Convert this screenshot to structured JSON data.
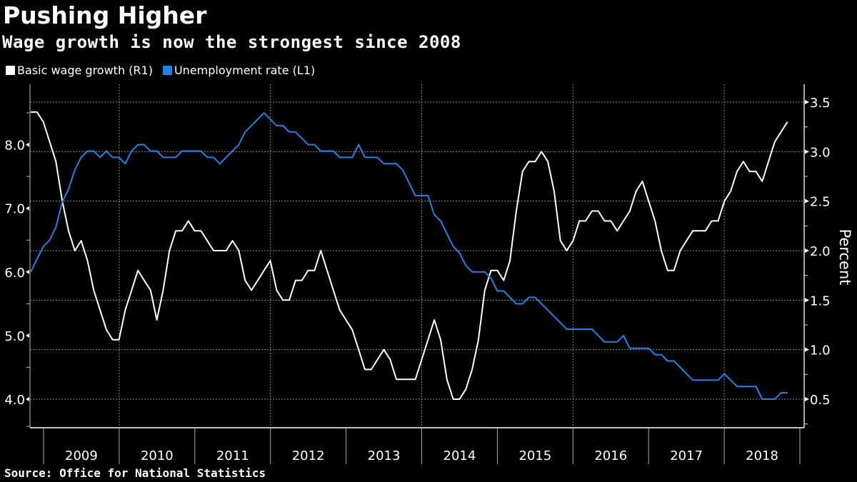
{
  "header": {
    "title": "Pushing Higher",
    "subtitle": "Wage growth is now the strongest since 2008"
  },
  "legend": [
    {
      "label": "Basic wage growth (R1)",
      "color": "#ffffff"
    },
    {
      "label": "Unemployment rate (L1)",
      "color": "#2283e2"
    }
  ],
  "footer": {
    "source": "Source: Office for National Statistics"
  },
  "chart_data": {
    "type": "line",
    "title": "Pushing Higher",
    "subtitle": "Wage growth is now the strongest since 2008",
    "x_frequency": "monthly",
    "x_start": "2008-11",
    "x_end": "2018-11",
    "x_tick_labels": [
      "2009",
      "2010",
      "2011",
      "2012",
      "2013",
      "2014",
      "2015",
      "2016",
      "2017",
      "2018"
    ],
    "xlabel": "",
    "left_axis": {
      "label": "",
      "ticks": [
        "4.0",
        "5.0",
        "6.0",
        "7.0",
        "8.0"
      ],
      "ylim": [
        3.55,
        8.95
      ]
    },
    "right_axis": {
      "label": "Percent",
      "ticks": [
        "0.5",
        "1.0",
        "1.5",
        "2.0",
        "2.5",
        "3.0",
        "3.5"
      ],
      "ylim": [
        0.22,
        3.68
      ]
    },
    "grid": true,
    "legend_position": "top-left",
    "series": [
      {
        "name": "Basic wage growth (R1)",
        "axis": "right",
        "color": "#ffffff",
        "values": [
          3.4,
          3.4,
          3.3,
          3.1,
          2.9,
          2.5,
          2.2,
          2.0,
          2.1,
          1.9,
          1.6,
          1.4,
          1.2,
          1.1,
          1.1,
          1.4,
          1.6,
          1.8,
          1.7,
          1.6,
          1.3,
          1.6,
          2.0,
          2.2,
          2.2,
          2.3,
          2.2,
          2.2,
          2.1,
          2.0,
          2.0,
          2.0,
          2.1,
          2.0,
          1.7,
          1.6,
          1.7,
          1.8,
          1.9,
          1.6,
          1.5,
          1.5,
          1.7,
          1.7,
          1.8,
          1.8,
          2.0,
          1.8,
          1.6,
          1.4,
          1.3,
          1.2,
          1.0,
          0.8,
          0.8,
          0.9,
          1.0,
          0.9,
          0.7,
          0.7,
          0.7,
          0.7,
          0.9,
          1.1,
          1.3,
          1.1,
          0.7,
          0.5,
          0.5,
          0.6,
          0.8,
          1.1,
          1.6,
          1.8,
          1.8,
          1.7,
          1.9,
          2.4,
          2.8,
          2.9,
          2.9,
          3.0,
          2.9,
          2.6,
          2.1,
          2.0,
          2.1,
          2.3,
          2.3,
          2.4,
          2.4,
          2.3,
          2.3,
          2.2,
          2.3,
          2.4,
          2.6,
          2.7,
          2.5,
          2.3,
          2.0,
          1.8,
          1.8,
          2.0,
          2.1,
          2.2,
          2.2,
          2.2,
          2.3,
          2.3,
          2.5,
          2.6,
          2.8,
          2.9,
          2.8,
          2.8,
          2.7,
          2.9,
          3.1,
          3.2,
          3.3
        ]
      },
      {
        "name": "Unemployment rate (L1)",
        "axis": "left",
        "color": "#2283e2",
        "values": [
          6.0,
          6.2,
          6.4,
          6.5,
          6.7,
          7.1,
          7.3,
          7.6,
          7.8,
          7.9,
          7.9,
          7.8,
          7.9,
          7.8,
          7.8,
          7.7,
          7.9,
          8.0,
          8.0,
          7.9,
          7.9,
          7.8,
          7.8,
          7.8,
          7.9,
          7.9,
          7.9,
          7.9,
          7.8,
          7.8,
          7.7,
          7.8,
          7.9,
          8.0,
          8.2,
          8.3,
          8.4,
          8.5,
          8.4,
          8.3,
          8.3,
          8.2,
          8.2,
          8.1,
          8.0,
          8.0,
          7.9,
          7.9,
          7.9,
          7.8,
          7.8,
          7.8,
          8.0,
          7.8,
          7.8,
          7.8,
          7.7,
          7.7,
          7.7,
          7.6,
          7.4,
          7.2,
          7.2,
          7.2,
          6.9,
          6.8,
          6.6,
          6.4,
          6.3,
          6.1,
          6.0,
          6.0,
          6.0,
          5.9,
          5.7,
          5.7,
          5.6,
          5.5,
          5.5,
          5.6,
          5.6,
          5.5,
          5.4,
          5.3,
          5.2,
          5.1,
          5.1,
          5.1,
          5.1,
          5.1,
          5.0,
          4.9,
          4.9,
          4.9,
          5.0,
          4.8,
          4.8,
          4.8,
          4.8,
          4.7,
          4.7,
          4.6,
          4.6,
          4.5,
          4.4,
          4.3,
          4.3,
          4.3,
          4.3,
          4.3,
          4.4,
          4.3,
          4.2,
          4.2,
          4.2,
          4.2,
          4.0,
          4.0,
          4.0,
          4.1,
          4.1
        ]
      }
    ]
  }
}
